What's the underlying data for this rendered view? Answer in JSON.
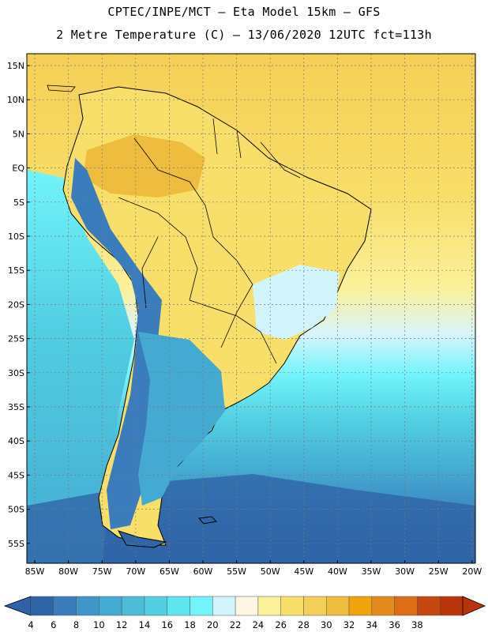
{
  "title_line1": "CPTEC/INPE/MCT –  Eta Model 15km – GFS",
  "title_line2": "2 Metre Temperature (C) – 13/06/2020 12UTC fct=113h",
  "lat_labels": [
    "15N",
    "10N",
    "5N",
    "EQ",
    "5S",
    "10S",
    "15S",
    "20S",
    "25S",
    "30S",
    "35S",
    "40S",
    "45S",
    "50S",
    "55S"
  ],
  "lon_labels": [
    "85W",
    "80W",
    "75W",
    "70W",
    "65W",
    "60W",
    "55W",
    "50W",
    "45W",
    "40W",
    "35W",
    "30W",
    "25W",
    "20W"
  ],
  "colorbar": {
    "labels": [
      "4",
      "6",
      "8",
      "10",
      "12",
      "14",
      "16",
      "18",
      "20",
      "22",
      "24",
      "26",
      "28",
      "30",
      "32",
      "34",
      "36",
      "38"
    ],
    "low_color": "#2f62a8",
    "high_color": "#b8340a",
    "colors": [
      "#2f64a6",
      "#3a7cbc",
      "#3f96c8",
      "#44aad2",
      "#4cbcd8",
      "#52cfe2",
      "#5ee6ee",
      "#72f4fb",
      "#d2f4fc",
      "#fdf7e3",
      "#fbf19a",
      "#f8df6a",
      "#f4cf57",
      "#efbd3d",
      "#f0a30d",
      "#e58a1c",
      "#dd6d16",
      "#c6460f",
      "#b8340a"
    ]
  },
  "map_colors": {
    "ocean_warm": "#f4d05a",
    "ocean_cool": "#4cbcd8",
    "land": "#f8df6a",
    "andes": "#3a7cbc",
    "patagonia": "#2f64a6",
    "border": "#000000"
  }
}
